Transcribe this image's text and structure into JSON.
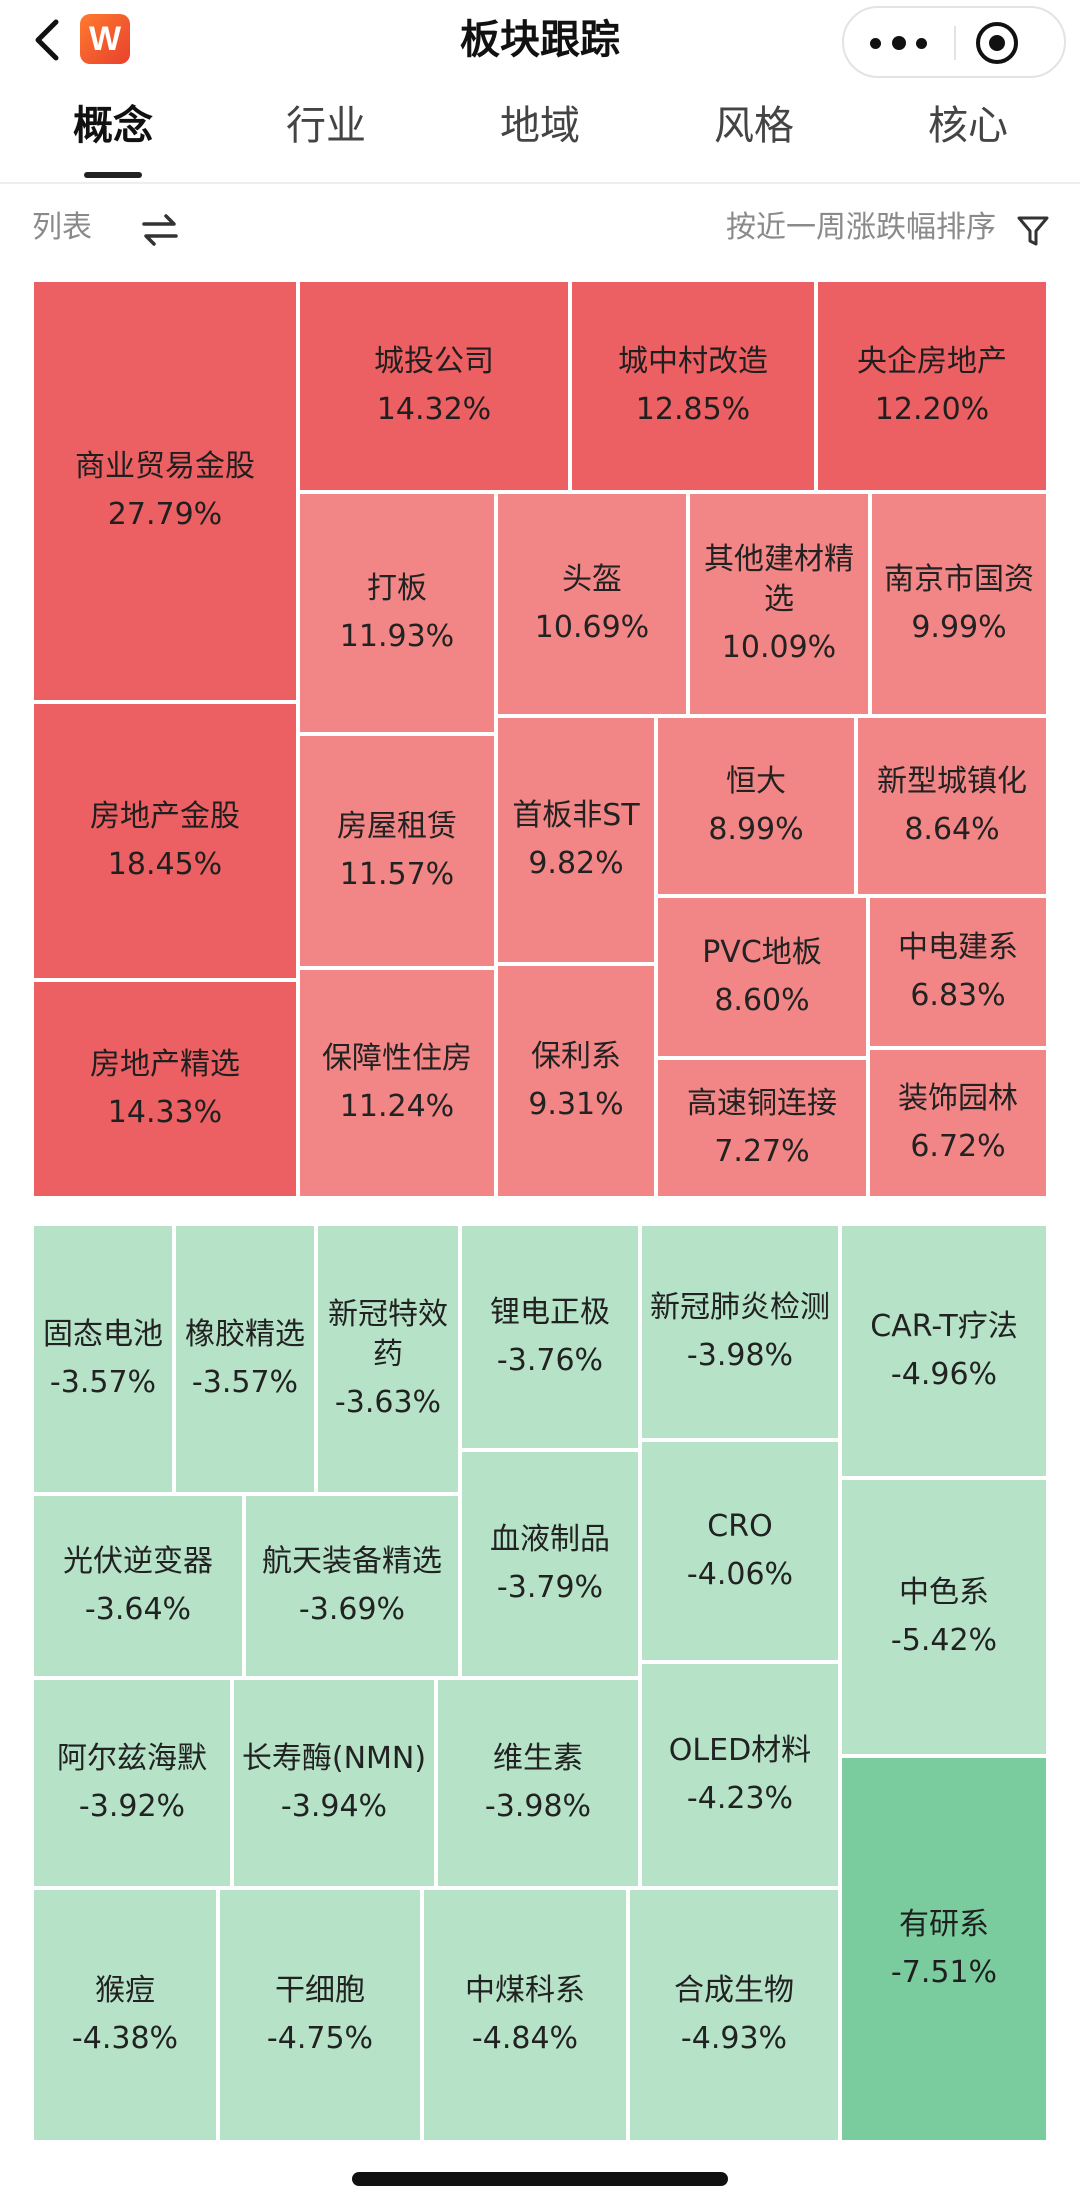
{
  "header": {
    "title": "板块跟踪",
    "logo": "W"
  },
  "tabs": [
    {
      "label": "概念",
      "active": true
    },
    {
      "label": "行业",
      "active": false
    },
    {
      "label": "地域",
      "active": false
    },
    {
      "label": "风格",
      "active": false
    },
    {
      "label": "核心",
      "active": false
    }
  ],
  "toolbar": {
    "list_label": "列表",
    "sort_label": "按近一周涨跌幅排序"
  },
  "colors": {
    "rise": "#f28585",
    "rise_strong": "#ec5f62",
    "fall": "#b6e3c8",
    "fall_strong": "#7acc9e"
  },
  "gainers": [
    {
      "name": "商业贸易金股",
      "value": "27.79%"
    },
    {
      "name": "城投公司",
      "value": "14.32%"
    },
    {
      "name": "城中村改造",
      "value": "12.85%"
    },
    {
      "name": "央企房地产",
      "value": "12.20%"
    },
    {
      "name": "打板",
      "value": "11.93%"
    },
    {
      "name": "头盔",
      "value": "10.69%"
    },
    {
      "name": "其他建材精选",
      "value": "10.09%"
    },
    {
      "name": "南京市国资",
      "value": "9.99%"
    },
    {
      "name": "房地产金股",
      "value": "18.45%"
    },
    {
      "name": "房屋租赁",
      "value": "11.57%"
    },
    {
      "name": "首板非ST",
      "value": "9.82%"
    },
    {
      "name": "恒大",
      "value": "8.99%"
    },
    {
      "name": "新型城镇化",
      "value": "8.64%"
    },
    {
      "name": "PVC地板",
      "value": "8.60%"
    },
    {
      "name": "中电建系",
      "value": "6.83%"
    },
    {
      "name": "房地产精选",
      "value": "14.33%"
    },
    {
      "name": "保障性住房",
      "value": "11.24%"
    },
    {
      "name": "保利系",
      "value": "9.31%"
    },
    {
      "name": "高速铜连接",
      "value": "7.27%"
    },
    {
      "name": "装饰园林",
      "value": "6.72%"
    }
  ],
  "losers": [
    {
      "name": "固态电池",
      "value": "-3.57%"
    },
    {
      "name": "橡胶精选",
      "value": "-3.57%"
    },
    {
      "name": "新冠特效药",
      "value": "-3.63%"
    },
    {
      "name": "锂电正极",
      "value": "-3.76%"
    },
    {
      "name": "新冠肺炎检测",
      "value": "-3.98%"
    },
    {
      "name": "CAR-T疗法",
      "value": "-4.96%"
    },
    {
      "name": "光伏逆变器",
      "value": "-3.64%"
    },
    {
      "name": "航天装备精选",
      "value": "-3.69%"
    },
    {
      "name": "血液制品",
      "value": "-3.79%"
    },
    {
      "name": "CRO",
      "value": "-4.06%"
    },
    {
      "name": "中色系",
      "value": "-5.42%"
    },
    {
      "name": "阿尔兹海默",
      "value": "-3.92%"
    },
    {
      "name": "长寿酶(NMN)",
      "value": "-3.94%"
    },
    {
      "name": "维生素",
      "value": "-3.98%"
    },
    {
      "name": "OLED材料",
      "value": "-4.23%"
    },
    {
      "name": "猴痘",
      "value": "-4.38%"
    },
    {
      "name": "干细胞",
      "value": "-4.75%"
    },
    {
      "name": "中煤科系",
      "value": "-4.84%"
    },
    {
      "name": "合成生物",
      "value": "-4.93%"
    },
    {
      "name": "有研系",
      "value": "-7.51%"
    }
  ]
}
